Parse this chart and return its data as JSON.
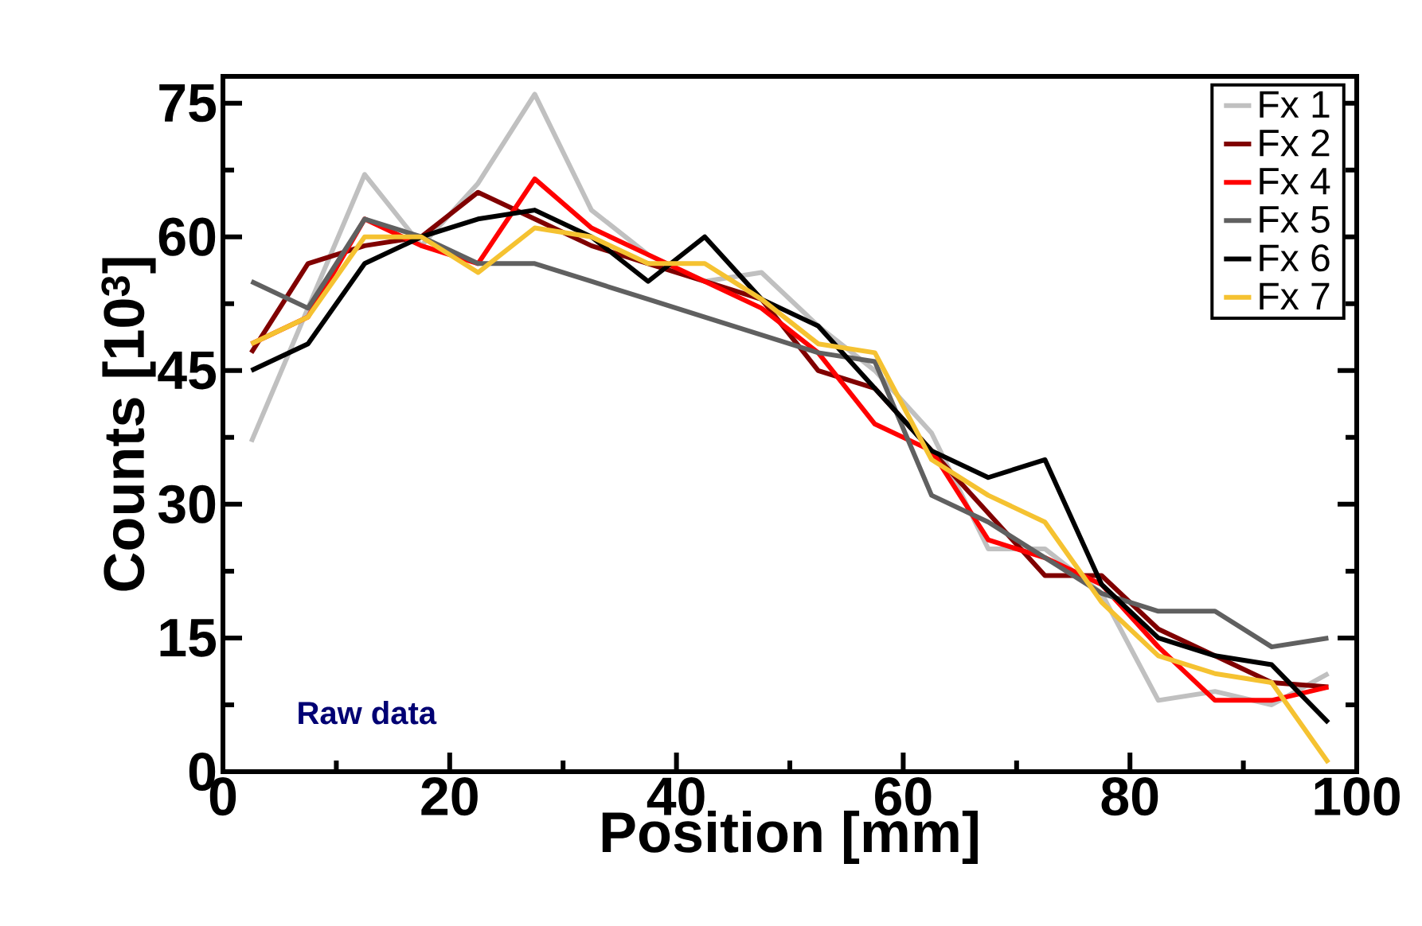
{
  "chart_data": {
    "type": "line",
    "xlabel": "Position [mm]",
    "ylabel": "Counts [10$^{3}$]",
    "x": [
      2.5,
      7.5,
      12.5,
      17.5,
      22.5,
      27.5,
      32.5,
      37.5,
      42.5,
      47.5,
      52.5,
      57.5,
      62.5,
      67.5,
      72.5,
      77.5,
      82.5,
      87.5,
      92.5,
      97.5
    ],
    "series": [
      {
        "name": "Fx 1",
        "color": "#c0c0c0",
        "values": [
          37,
          52,
          67,
          59,
          66,
          76,
          63,
          58,
          55,
          56,
          50,
          45,
          38,
          25,
          25,
          20,
          8,
          9,
          7.5,
          11
        ]
      },
      {
        "name": "Fx 2",
        "color": "#800000",
        "values": [
          47,
          57,
          59,
          60,
          65,
          62,
          59,
          57,
          55,
          53,
          45,
          43,
          36,
          29,
          22,
          22,
          16,
          13,
          10,
          9.5
        ]
      },
      {
        "name": "Fx 4",
        "color": "#ff0000",
        "values": [
          48,
          51,
          62,
          59,
          57,
          66.5,
          61,
          58,
          55,
          52,
          47,
          39,
          36,
          26,
          24,
          21,
          14,
          8,
          8,
          9.5
        ]
      },
      {
        "name": "Fx 5",
        "color": "#606060",
        "values": [
          55,
          52,
          62,
          60,
          57,
          57,
          55,
          53,
          51,
          49,
          47,
          46,
          31,
          28,
          24,
          20,
          18,
          18,
          14,
          15
        ]
      },
      {
        "name": "Fx 6",
        "color": "#000000",
        "values": [
          45,
          48,
          57,
          60,
          62,
          63,
          60,
          55,
          60,
          53,
          50,
          43,
          36,
          33,
          35,
          21,
          15,
          13,
          12,
          5.5
        ]
      },
      {
        "name": "Fx 7",
        "color": "#f5c231",
        "values": [
          48,
          51,
          60,
          60,
          56,
          61,
          60,
          57,
          57,
          53,
          48,
          47,
          35,
          31,
          28,
          19,
          13,
          11,
          10,
          1
        ]
      }
    ],
    "xlim": [
      0,
      100
    ],
    "ylim": [
      0,
      78
    ],
    "xticks": [
      0,
      20,
      40,
      60,
      80,
      100
    ],
    "yticks": [
      0,
      15,
      30,
      45,
      60,
      75
    ],
    "annotations": [
      "Raw data"
    ],
    "legend": "top right",
    "grid": false,
    "marker": "none",
    "line_style": "solid"
  }
}
